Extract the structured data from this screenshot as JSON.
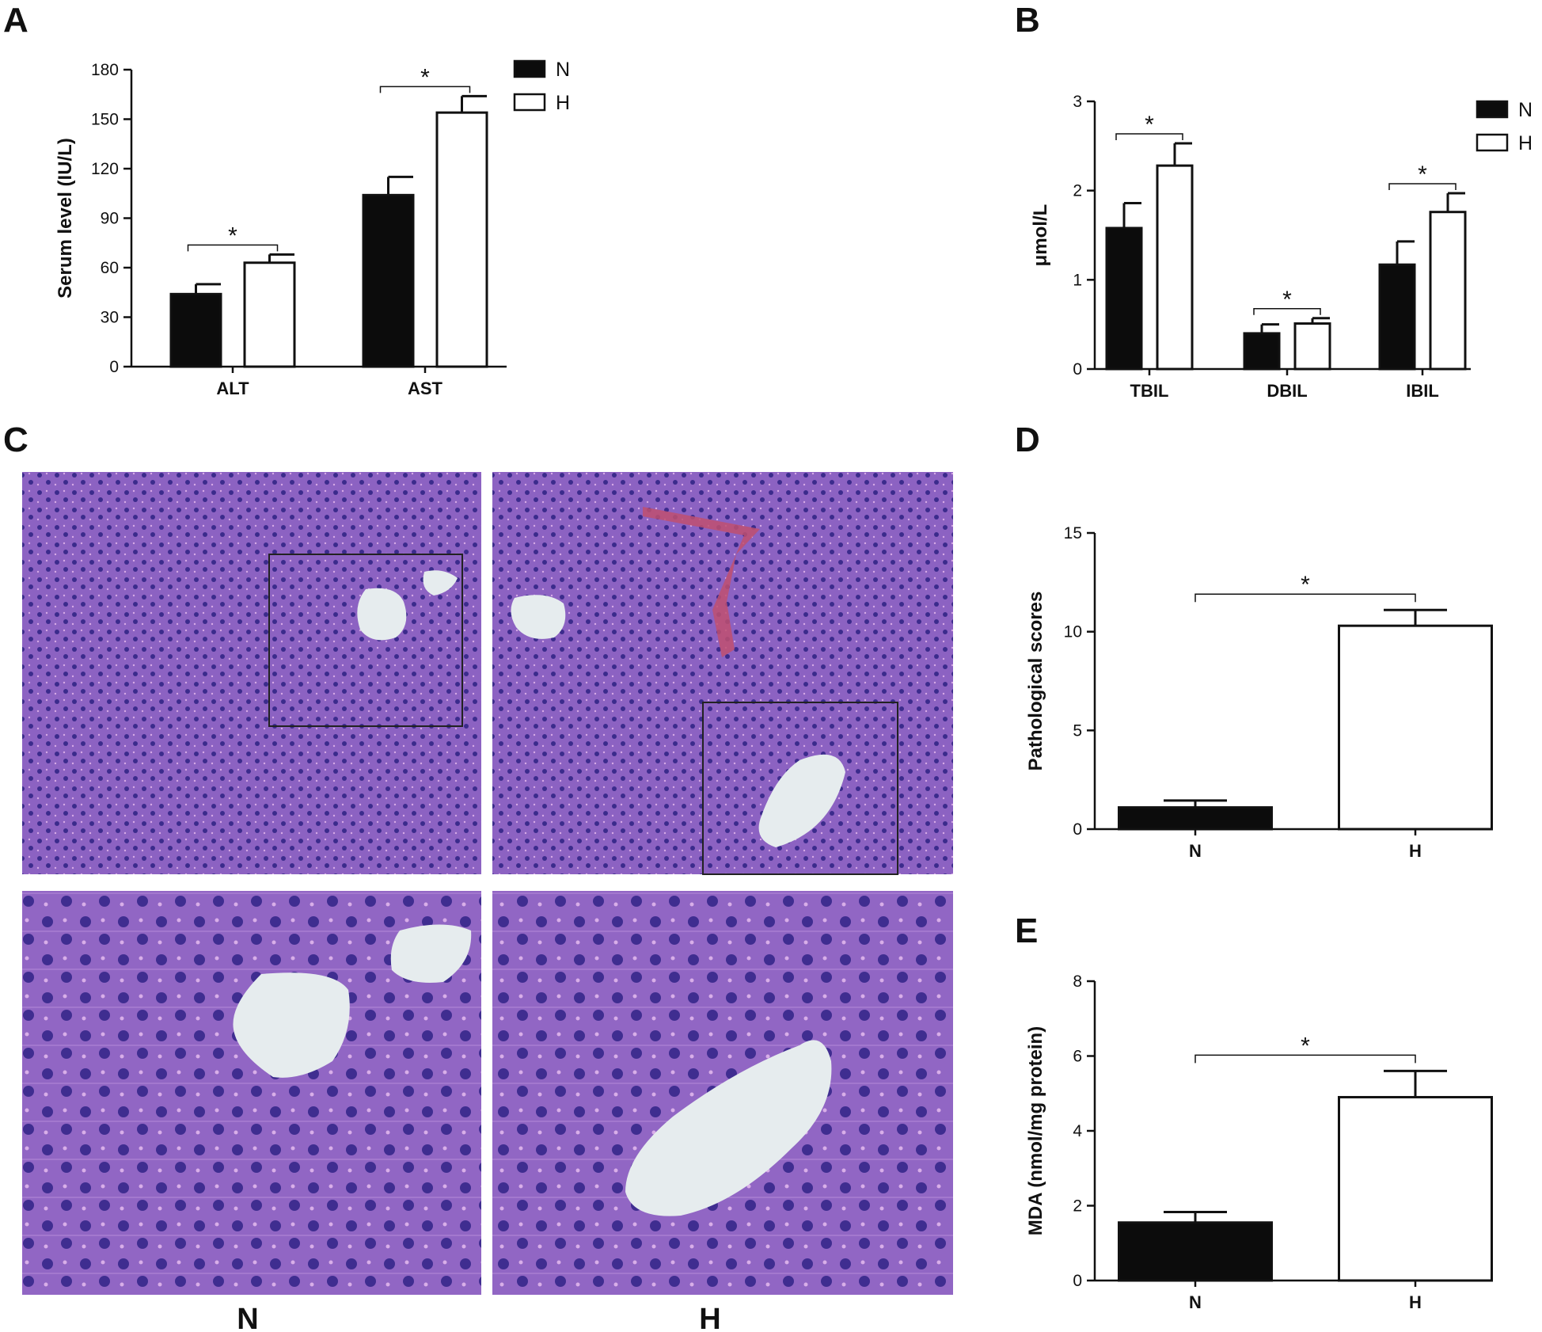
{
  "panels": [
    {
      "letter": "A"
    },
    {
      "letter": "B"
    },
    {
      "letter": "C"
    },
    {
      "letter": "D"
    },
    {
      "letter": "E"
    }
  ],
  "colors": {
    "N": "#0c0c0c",
    "H": "#ffffff",
    "stroke": "#111111",
    "tissue": "#8a5fc0",
    "nucleus": "#3a2a8a"
  },
  "chart_data": [
    {
      "id": "A",
      "type": "bar",
      "ylabel": "Serum level (IU/L)",
      "xlabel": "",
      "categories": [
        "ALT",
        "AST"
      ],
      "ylim": [
        0,
        180
      ],
      "yticks": [
        0,
        30,
        60,
        90,
        120,
        150,
        180
      ],
      "series": [
        {
          "name": "N",
          "values": [
            44,
            104
          ],
          "errors": [
            6,
            11
          ]
        },
        {
          "name": "H",
          "values": [
            63,
            154
          ],
          "errors": [
            5,
            10
          ]
        }
      ],
      "significance": [
        {
          "category": "ALT",
          "label": "*"
        },
        {
          "category": "AST",
          "label": "*"
        }
      ],
      "legend": "top-right",
      "grid": false
    },
    {
      "id": "B",
      "type": "bar",
      "ylabel": "μmol/L",
      "xlabel": "",
      "categories": [
        "TBIL",
        "DBIL",
        "IBIL"
      ],
      "ylim": [
        0,
        3
      ],
      "yticks": [
        0,
        1,
        2,
        3
      ],
      "series": [
        {
          "name": "N",
          "values": [
            1.58,
            0.4,
            1.17
          ],
          "errors": [
            0.28,
            0.1,
            0.26
          ]
        },
        {
          "name": "H",
          "values": [
            2.28,
            0.51,
            1.76
          ],
          "errors": [
            0.25,
            0.06,
            0.21
          ]
        }
      ],
      "significance": [
        {
          "category": "TBIL",
          "label": "*"
        },
        {
          "category": "DBIL",
          "label": "*"
        },
        {
          "category": "IBIL",
          "label": "*"
        }
      ],
      "legend": "top-right",
      "grid": false
    },
    {
      "id": "D",
      "type": "bar",
      "ylabel": "Pathological scores",
      "xlabel": "",
      "categories": [
        "N",
        "H"
      ],
      "ylim": [
        0,
        15
      ],
      "yticks": [
        0,
        5,
        10,
        15
      ],
      "series": [
        {
          "values": [
            1.1,
            10.3
          ],
          "errors": [
            0.35,
            0.8
          ]
        }
      ],
      "significance": [
        {
          "label": "*"
        }
      ],
      "grid": false
    },
    {
      "id": "E",
      "type": "bar",
      "ylabel": "MDA (nmol/mg protein)",
      "xlabel": "",
      "categories": [
        "N",
        "H"
      ],
      "ylim": [
        0,
        8
      ],
      "yticks": [
        0,
        2,
        4,
        6,
        8
      ],
      "series": [
        {
          "values": [
            1.55,
            4.9
          ],
          "errors": [
            0.28,
            0.7
          ]
        }
      ],
      "significance": [
        {
          "label": "*"
        }
      ],
      "grid": false
    }
  ],
  "micrographs": {
    "group_labels": [
      "N",
      "H"
    ],
    "images": [
      {
        "name": "micrograph-n-low"
      },
      {
        "name": "micrograph-h-low"
      },
      {
        "name": "micrograph-n-high"
      },
      {
        "name": "micrograph-h-high"
      }
    ]
  }
}
